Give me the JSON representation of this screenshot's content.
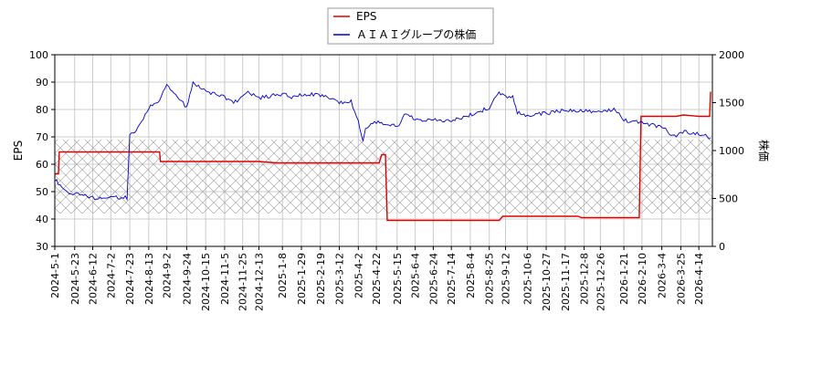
{
  "chart_data": {
    "type": "line",
    "legend_position": "top-center",
    "grid": true,
    "yaxis_left": {
      "label": "EPS",
      "range": [
        30,
        100
      ],
      "ticks": [
        30,
        40,
        50,
        60,
        70,
        80,
        90,
        100
      ]
    },
    "yaxis_right": {
      "label": "株価",
      "range": [
        0,
        2000
      ],
      "ticks": [
        0,
        500,
        1000,
        1500,
        2000
      ]
    },
    "x_ticks": [
      "2024-5-1",
      "2024-5-23",
      "2024-6-12",
      "2024-7-2",
      "2024-7-23",
      "2024-8-13",
      "2024-9-2",
      "2024-9-24",
      "2024-10-15",
      "2024-11-5",
      "2024-11-25",
      "2024-12-13",
      "2025-1-8",
      "2025-1-29",
      "2025-2-19",
      "2025-3-12",
      "2025-4-2",
      "2025-4-22",
      "2025-5-15",
      "2025-6-4",
      "2025-6-24",
      "2025-7-14",
      "2025-8-4",
      "2025-8-25",
      "2025-9-12",
      "2025-10-6",
      "2025-10-27",
      "2025-11-17",
      "2025-12-8",
      "2025-12-26",
      "2026-1-21",
      "2026-2-10",
      "2026-3-4",
      "2026-3-25",
      "2026-4-14"
    ],
    "series": [
      {
        "name": "EPS",
        "axis": "left",
        "color": "#dd0000",
        "points": [
          [
            "2024-5-1",
            56.5
          ],
          [
            "2024-5-5",
            56.5
          ],
          [
            "2024-5-6",
            64.5
          ],
          [
            "2024-7-23",
            64.5
          ],
          [
            "2024-8-25",
            64.5
          ],
          [
            "2024-8-26",
            61.0
          ],
          [
            "2024-12-13",
            61.0
          ],
          [
            "2025-1-1",
            60.5
          ],
          [
            "2025-4-25",
            60.5
          ],
          [
            "2025-4-28",
            63.5
          ],
          [
            "2025-5-2",
            63.5
          ],
          [
            "2025-5-4",
            39.5
          ],
          [
            "2025-9-5",
            39.5
          ],
          [
            "2025-9-9",
            41.0
          ],
          [
            "2025-12-1",
            41.0
          ],
          [
            "2025-12-5",
            40.5
          ],
          [
            "2026-2-7",
            40.5
          ],
          [
            "2026-2-9",
            77.5
          ],
          [
            "2026-3-20",
            77.5
          ],
          [
            "2026-3-28",
            78.0
          ],
          [
            "2026-4-14",
            77.5
          ],
          [
            "2026-4-26",
            77.5
          ],
          [
            "2026-4-27",
            86.5
          ]
        ]
      },
      {
        "name": "ＡＩＡＩグループの株価",
        "axis": "right",
        "color": "#0000cc",
        "points": [
          [
            "2024-5-1",
            700
          ],
          [
            "2024-5-15",
            560
          ],
          [
            "2024-6-12",
            510
          ],
          [
            "2024-7-2",
            510
          ],
          [
            "2024-7-20",
            510
          ],
          [
            "2024-7-23",
            1150
          ],
          [
            "2024-8-1",
            1230
          ],
          [
            "2024-8-13",
            1450
          ],
          [
            "2024-8-25",
            1520
          ],
          [
            "2024-9-2",
            1700
          ],
          [
            "2024-9-10",
            1600
          ],
          [
            "2024-9-24",
            1450
          ],
          [
            "2024-10-1",
            1700
          ],
          [
            "2024-10-15",
            1620
          ],
          [
            "2024-11-5",
            1560
          ],
          [
            "2024-11-15",
            1500
          ],
          [
            "2024-12-1",
            1600
          ],
          [
            "2024-12-13",
            1550
          ],
          [
            "2025-1-8",
            1590
          ],
          [
            "2025-1-20",
            1550
          ],
          [
            "2025-1-29",
            1590
          ],
          [
            "2025-2-19",
            1580
          ],
          [
            "2025-3-12",
            1500
          ],
          [
            "2025-3-25",
            1510
          ],
          [
            "2025-4-2",
            1300
          ],
          [
            "2025-4-7",
            1100
          ],
          [
            "2025-4-10",
            1230
          ],
          [
            "2025-4-22",
            1300
          ],
          [
            "2025-5-15",
            1250
          ],
          [
            "2025-5-25",
            1400
          ],
          [
            "2025-6-4",
            1320
          ],
          [
            "2025-7-14",
            1310
          ],
          [
            "2025-8-4",
            1370
          ],
          [
            "2025-8-25",
            1450
          ],
          [
            "2025-9-3",
            1600
          ],
          [
            "2025-9-12",
            1560
          ],
          [
            "2025-9-20",
            1570
          ],
          [
            "2025-9-25",
            1400
          ],
          [
            "2025-10-6",
            1370
          ],
          [
            "2025-10-27",
            1390
          ],
          [
            "2025-11-17",
            1420
          ],
          [
            "2025-12-8",
            1410
          ],
          [
            "2025-12-26",
            1400
          ],
          [
            "2026-1-10",
            1430
          ],
          [
            "2026-1-21",
            1320
          ],
          [
            "2026-1-31",
            1300
          ],
          [
            "2026-2-10",
            1290
          ],
          [
            "2026-3-4",
            1250
          ],
          [
            "2026-3-20",
            1130
          ],
          [
            "2026-3-25",
            1200
          ],
          [
            "2026-4-14",
            1180
          ],
          [
            "2026-4-27",
            1130
          ]
        ]
      }
    ],
    "shaded_band": {
      "axis": "left",
      "range": [
        42,
        69
      ],
      "pattern": "crosshatch"
    }
  }
}
